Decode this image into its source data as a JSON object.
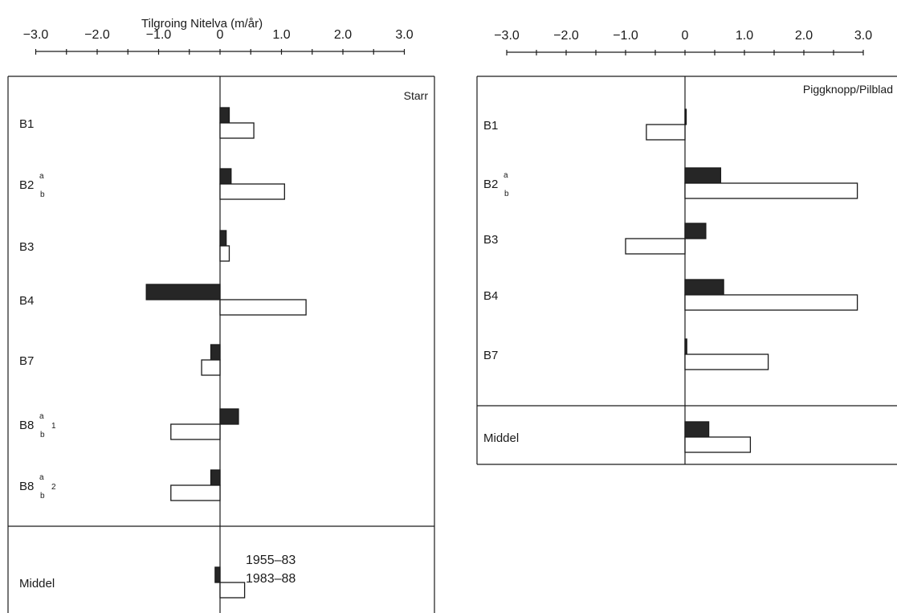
{
  "figure_title": "Tilgroing Nitelva (m/år)",
  "legend": {
    "dark_label": "1955–83",
    "light_label": "1983–88"
  },
  "colors": {
    "dark": "#262626",
    "light": "#ffffff",
    "stroke": "#1a1a1a"
  },
  "chart_data": [
    {
      "type": "bar",
      "orientation": "horizontal",
      "title": "Starr",
      "xlim": [
        -3.0,
        3.0
      ],
      "xticks": [
        "−3.0",
        "−2.0",
        "−1.0",
        "0",
        "1.0",
        "2.0",
        "3.0"
      ],
      "categories": [
        {
          "main": "B1",
          "sup": "",
          "sub": "",
          "idx": ""
        },
        {
          "main": "B2",
          "sup": "a",
          "sub": "b",
          "idx": ""
        },
        {
          "main": "B3",
          "sup": "",
          "sub": "",
          "idx": ""
        },
        {
          "main": "B4",
          "sup": "",
          "sub": "",
          "idx": ""
        },
        {
          "main": "B7",
          "sup": "",
          "sub": "",
          "idx": ""
        },
        {
          "main": "B8",
          "sup": "a",
          "sub": "b",
          "idx": "1"
        },
        {
          "main": "B8",
          "sup": "a",
          "sub": "b",
          "idx": "2"
        },
        {
          "main": "Middel",
          "sup": "",
          "sub": "",
          "idx": ""
        }
      ],
      "series": [
        {
          "name": "1955–83",
          "values": [
            0.15,
            0.18,
            0.1,
            -1.2,
            -0.15,
            0.3,
            -0.15,
            -0.08
          ]
        },
        {
          "name": "1983–88",
          "values": [
            0.55,
            1.05,
            0.15,
            1.4,
            -0.3,
            -0.8,
            -0.8,
            0.4
          ]
        }
      ]
    },
    {
      "type": "bar",
      "orientation": "horizontal",
      "title": "Piggknopp/Pilblad",
      "xlim": [
        -3.0,
        3.0
      ],
      "xticks": [
        "−3.0",
        "−2.0",
        "−1.0",
        "0",
        "1.0",
        "2.0",
        "3.0"
      ],
      "categories": [
        {
          "main": "B1",
          "sup": "",
          "sub": "",
          "idx": ""
        },
        {
          "main": "B2",
          "sup": "a",
          "sub": "b",
          "idx": ""
        },
        {
          "main": "B3",
          "sup": "",
          "sub": "",
          "idx": ""
        },
        {
          "main": "B4",
          "sup": "",
          "sub": "",
          "idx": ""
        },
        {
          "main": "B7",
          "sup": "",
          "sub": "",
          "idx": ""
        },
        {
          "main": "Middel",
          "sup": "",
          "sub": "",
          "idx": ""
        }
      ],
      "series": [
        {
          "name": "1955–83",
          "values": [
            0,
            0.6,
            0.35,
            0.65,
            0.03,
            0.4
          ]
        },
        {
          "name": "1983–88",
          "values": [
            -0.65,
            2.9,
            -1.0,
            2.9,
            1.4,
            1.1
          ]
        }
      ]
    }
  ]
}
